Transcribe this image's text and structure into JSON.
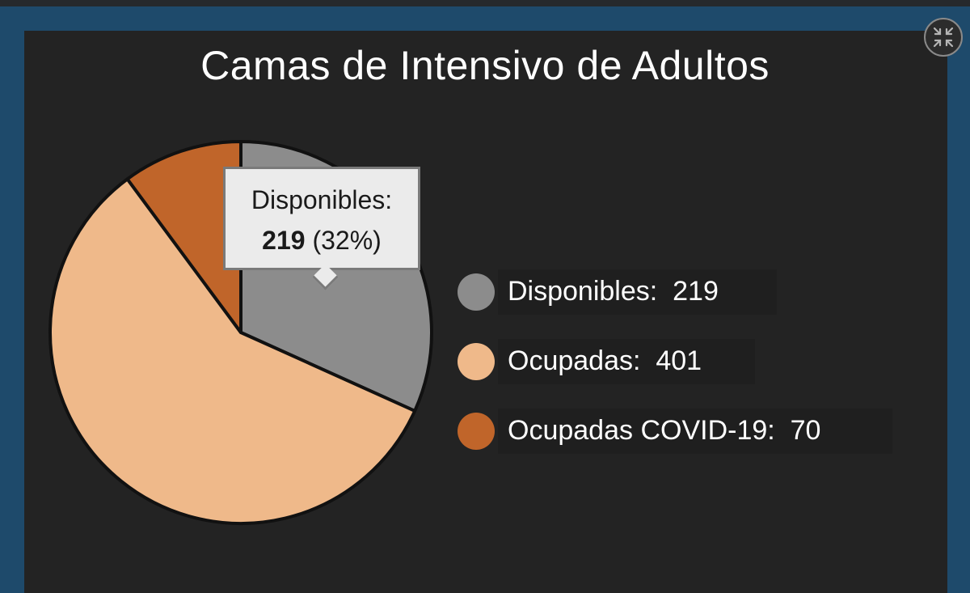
{
  "chart_data": {
    "type": "pie",
    "title": "Camas de Intensivo de Adultos",
    "slices": [
      {
        "label": "Disponibles",
        "value": 219,
        "color": "#8c8c8c"
      },
      {
        "label": "Ocupadas",
        "value": 401,
        "color": "#efb98a"
      },
      {
        "label": "Ocupadas COVID-19",
        "value": 70,
        "color": "#c0652a"
      }
    ],
    "legend_placement": "right"
  },
  "legend": [
    {
      "label": "Disponibles:",
      "value": "219",
      "color": "#8c8c8c"
    },
    {
      "label": "Ocupadas:",
      "value": "401",
      "color": "#efb98a"
    },
    {
      "label": "Ocupadas COVID-19:",
      "value": "70",
      "color": "#c0652a"
    }
  ],
  "tooltip": {
    "label": "Disponibles:",
    "value": "219",
    "percent": "(32%)"
  },
  "colors": {
    "frame": "#1e4a6b",
    "panel": "#232323",
    "outline": "#111111"
  },
  "icons": {
    "collapse": "collapse-arrows-icon"
  }
}
